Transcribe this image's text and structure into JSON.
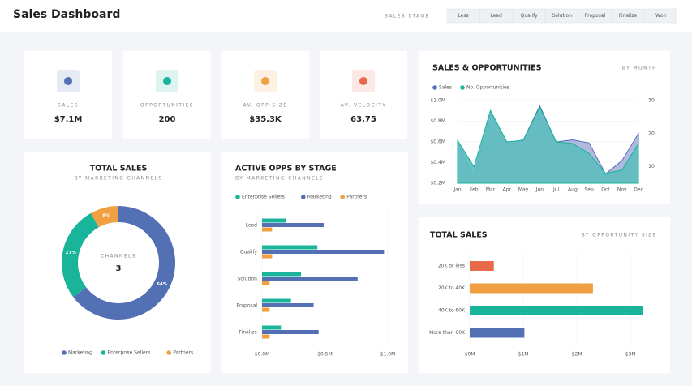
{
  "header": {
    "title": "Sales Dashboard",
    "filter_label": "SALES STAGE",
    "stages": [
      "Less",
      "Lead",
      "Qualify",
      "Solution",
      "Proposal",
      "Finalize",
      "Won"
    ]
  },
  "kpis": [
    {
      "label": "SALES",
      "value": "$7.1M",
      "color": "#5470b4"
    },
    {
      "label": "OPPORTUNITIES",
      "value": "200",
      "color": "#1ab49a"
    },
    {
      "label": "AV. OPP SIZE",
      "value": "$35.3K",
      "color": "#f0a040"
    },
    {
      "label": "AV. VELOCITY",
      "value": "63.75",
      "color": "#e8684a"
    }
  ],
  "chart_data": [
    {
      "type": "donut",
      "title": "TOTAL SALES",
      "subtitle": "BY MARKETING CHANNELS",
      "center_label": "CHANNELS",
      "center_value": 3,
      "categories": [
        "Marketing",
        "Enterprise Sellers",
        "Partners"
      ],
      "values": [
        64,
        27,
        8
      ],
      "value_labels": [
        "64%",
        "27%",
        "8%"
      ],
      "colors": [
        "#5470b4",
        "#1ab49a",
        "#f0a040"
      ]
    },
    {
      "type": "hbar_grouped",
      "title": "ACTIVE OPPS BY STAGE",
      "subtitle": "BY MARKETING CHANNELS",
      "categories": [
        "Lead",
        "Qualify",
        "Solution",
        "Proposal",
        "Finalize"
      ],
      "series": [
        {
          "name": "Enterprise Sellers",
          "color": "#1ab49a",
          "values": [
            0.19,
            0.44,
            0.31,
            0.23,
            0.15
          ]
        },
        {
          "name": "Marketing",
          "color": "#5470b4",
          "values": [
            0.49,
            0.97,
            0.76,
            0.41,
            0.45
          ]
        },
        {
          "name": "Partners",
          "color": "#f0a040",
          "values": [
            0.08,
            0.08,
            0.06,
            0.06,
            0.06
          ]
        }
      ],
      "xlim": [
        0,
        1.0
      ],
      "xticks": [
        {
          "value": 0,
          "label": "$0.0M"
        },
        {
          "value": 0.5,
          "label": "$0.5M"
        },
        {
          "value": 1.0,
          "label": "$1.0M"
        }
      ]
    },
    {
      "type": "area",
      "title": "SALES & OPPORTUNITIES",
      "subtitle": "BY MONTH",
      "categories": [
        "Jan",
        "Feb",
        "Mar",
        "Apr",
        "May",
        "Jun",
        "Jul",
        "Aug",
        "Sep",
        "Oct",
        "Nov",
        "Dec"
      ],
      "series": [
        {
          "name": "Sales",
          "color": "#5470b4",
          "values": [
            0.6,
            0.25,
            0.9,
            0.59,
            0.62,
            0.95,
            0.6,
            0.62,
            0.59,
            0.29,
            0.42,
            0.68
          ]
        },
        {
          "name": "No. Opportunities",
          "color": "#1ab49a",
          "axis": "y2",
          "values": [
            18,
            10,
            27,
            17.5,
            18,
            28,
            17.5,
            17,
            14,
            8,
            9,
            17
          ]
        }
      ],
      "ylim": [
        0.2,
        1.0
      ],
      "yticks": [
        {
          "value": 0.2,
          "label": "$0.2M"
        },
        {
          "value": 0.4,
          "label": "$0.4M"
        },
        {
          "value": 0.6,
          "label": "$0.6M"
        },
        {
          "value": 0.8,
          "label": "$0.8M"
        },
        {
          "value": 1.0,
          "label": "$1.0M"
        }
      ],
      "y2lim": [
        5,
        30
      ],
      "y2ticks": [
        10,
        20,
        30
      ]
    },
    {
      "type": "hbar",
      "title": "TOTAL SALES",
      "subtitle": "BY OPPORTUNITY SIZE",
      "categories": [
        "20K or less",
        "20K to 40K",
        "40K to 60K",
        "More than 60K"
      ],
      "values": [
        0.45,
        2.3,
        3.23,
        1.02
      ],
      "colors": [
        "#e8684a",
        "#f0a040",
        "#1ab49a",
        "#5470b4"
      ],
      "xlim": [
        0,
        3.3
      ],
      "xticks": [
        {
          "value": 0,
          "label": "$0M"
        },
        {
          "value": 1,
          "label": "$1M"
        },
        {
          "value": 2,
          "label": "$2M"
        },
        {
          "value": 3,
          "label": "$3M"
        }
      ]
    }
  ]
}
